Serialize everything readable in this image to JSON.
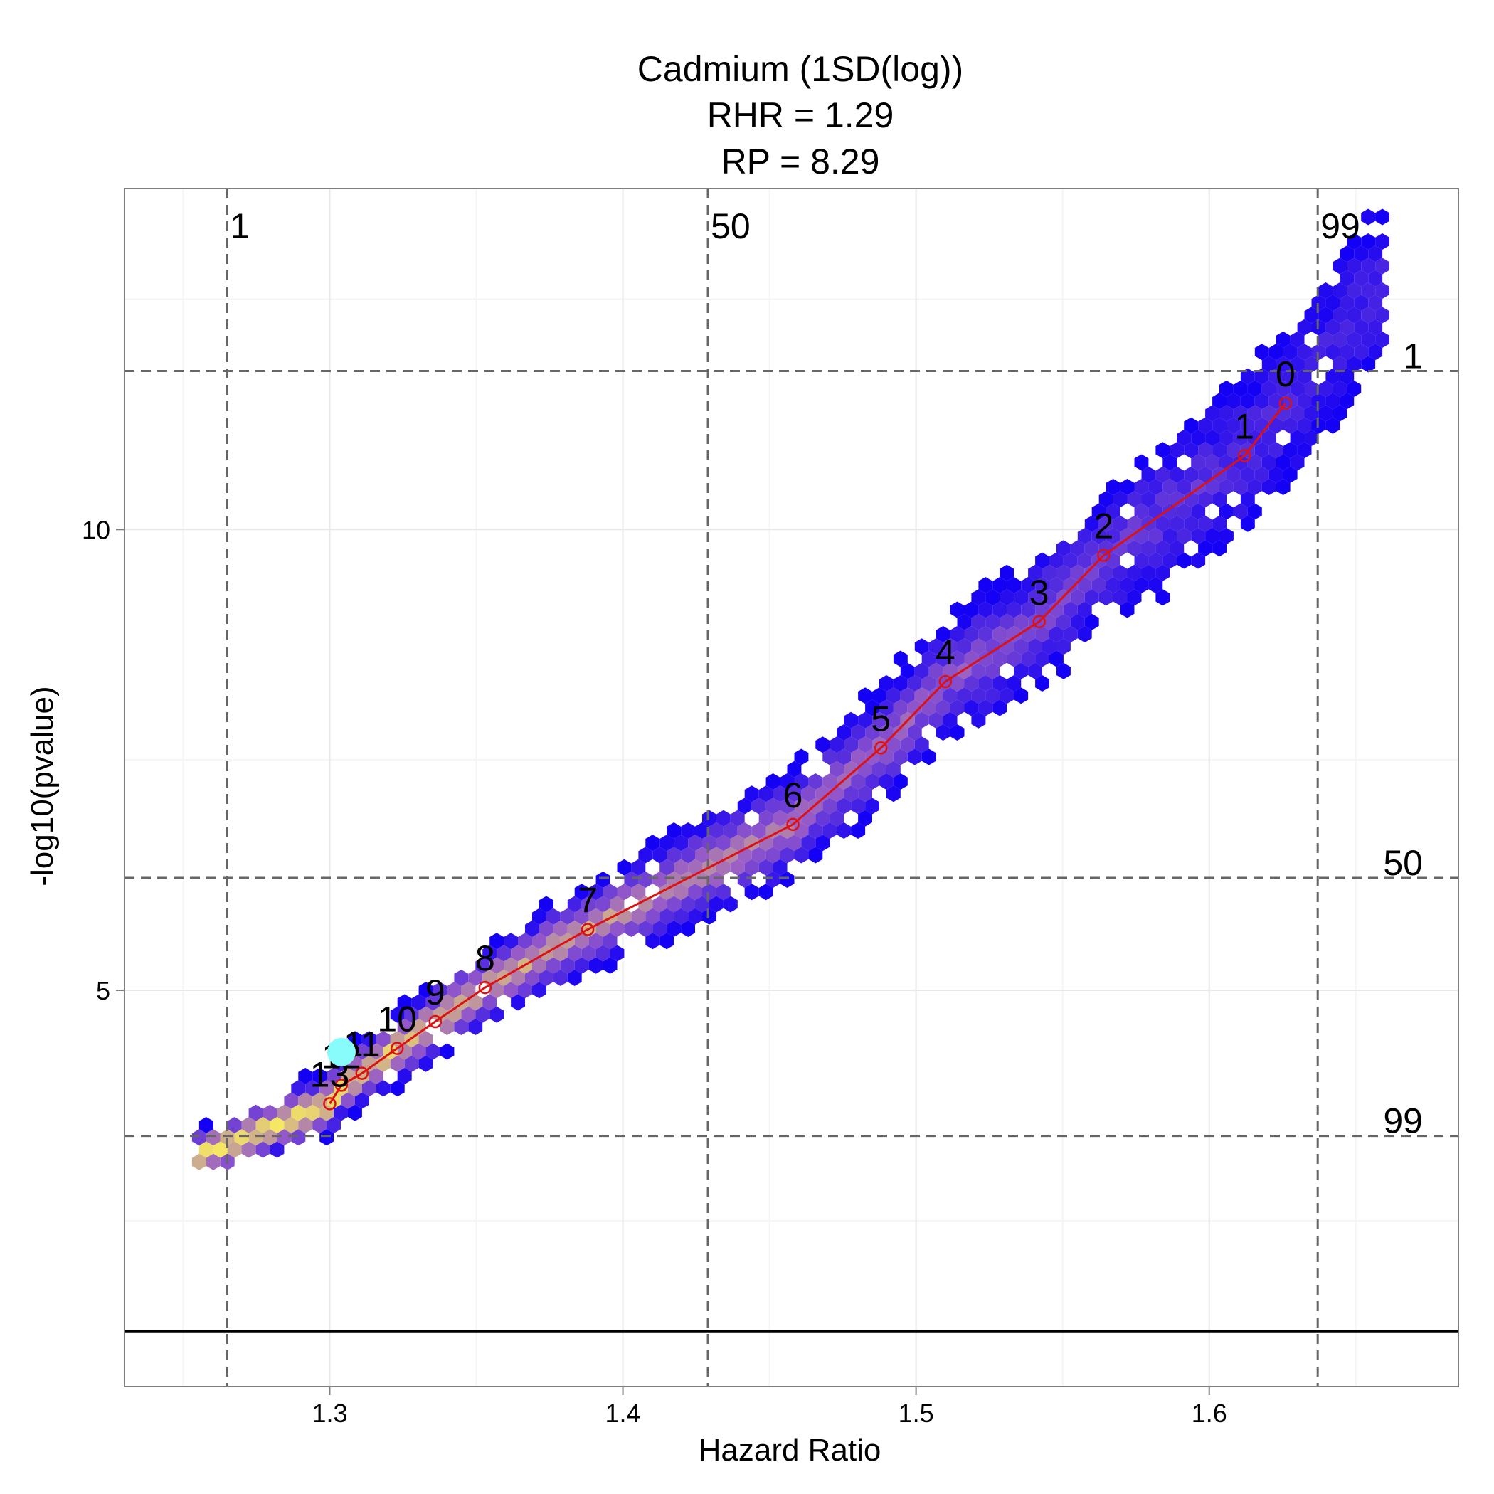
{
  "chart_data": {
    "type": "scatter",
    "title_lines": [
      "Cadmium (1SD(log))",
      "RHR = 1.29",
      "RP = 8.29"
    ],
    "xlabel": "Hazard Ratio",
    "ylabel": "-log10(pvalue)",
    "xlim": [
      1.23,
      1.685
    ],
    "ylim": [
      0.7,
      13.7
    ],
    "x_ticks": [
      1.3,
      1.4,
      1.5,
      1.6
    ],
    "x_tick_labels": [
      "1.3",
      "1.4",
      "1.5",
      "1.6"
    ],
    "y_ticks": [
      5,
      10
    ],
    "y_tick_labels": [
      "5",
      "10"
    ],
    "grid": true,
    "baseline_y": 1.3,
    "vertical_percentiles": [
      {
        "label": "1",
        "x": 1.265
      },
      {
        "label": "50",
        "x": 1.429
      },
      {
        "label": "99",
        "x": 1.637
      }
    ],
    "horizontal_percentiles": [
      {
        "label": "1",
        "y": 11.72
      },
      {
        "label": "50",
        "y": 6.22
      },
      {
        "label": "99",
        "y": 3.42
      }
    ],
    "trend_line": {
      "labels": [
        "0",
        "1",
        "2",
        "3",
        "4",
        "5",
        "6",
        "7",
        "8",
        "9",
        "10",
        "11",
        "12",
        "13"
      ],
      "x": [
        1.626,
        1.612,
        1.564,
        1.542,
        1.51,
        1.488,
        1.458,
        1.388,
        1.353,
        1.336,
        1.323,
        1.311,
        1.304,
        1.3
      ],
      "y": [
        11.37,
        10.8,
        9.72,
        9.0,
        8.35,
        7.63,
        6.8,
        5.66,
        5.03,
        4.66,
        4.37,
        4.1,
        3.97,
        3.77
      ]
    },
    "reference_point": {
      "x": 1.304,
      "y": 4.33
    },
    "colors": {
      "hex_low": "#1400f5",
      "hex_high": "#f5e663",
      "trend": "#dd1111",
      "reference_point": "#88fcfa",
      "percentile_lines": "#666666",
      "grid_major": "#e8e8e8",
      "grid_minor": "#f5f5f5"
    }
  }
}
